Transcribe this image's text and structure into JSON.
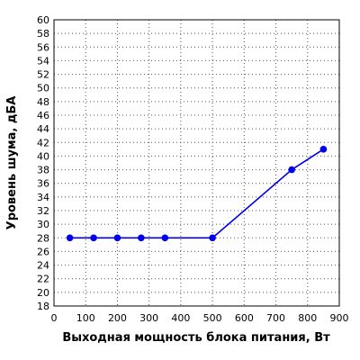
{
  "chart_data": {
    "type": "line",
    "xlabel": "Выходная мощность блока питания, Вт",
    "ylabel": "Уровень шума, дБА",
    "xlim": [
      0,
      900
    ],
    "ylim": [
      18,
      60
    ],
    "x_ticks": [
      "0",
      "100",
      "200",
      "300",
      "400",
      "500",
      "600",
      "700",
      "800",
      "900"
    ],
    "y_ticks": [
      "18",
      "20",
      "22",
      "24",
      "26",
      "28",
      "30",
      "32",
      "34",
      "36",
      "38",
      "40",
      "42",
      "44",
      "46",
      "48",
      "50",
      "52",
      "54",
      "56",
      "58",
      "60"
    ],
    "grid": true,
    "series": [
      {
        "color": "#0000ee",
        "x": [
          50,
          125,
          200,
          275,
          350,
          500,
          750,
          850
        ],
        "y": [
          28,
          28,
          28,
          28,
          28,
          28,
          38,
          41
        ]
      }
    ]
  }
}
